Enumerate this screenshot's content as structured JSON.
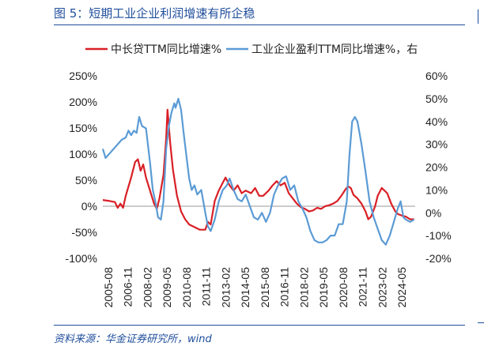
{
  "title": "图 5：短期工业企业利润增速有所企稳",
  "source": "资料来源：华金证券研究所，wind",
  "chart_data": {
    "type": "line",
    "legend": [
      {
        "name": "中长贷TTM同比增速%",
        "color": "#d91f26"
      },
      {
        "name": "工业企业盈利TTM同比增速%，右",
        "color": "#5b9bd5"
      }
    ],
    "x_tick_labels": [
      "2005-08",
      "2006-11",
      "2008-02",
      "2009-05",
      "2010-08",
      "2011-11",
      "2013-02",
      "2014-05",
      "2015-08",
      "2016-11",
      "2018-02",
      "2019-05",
      "2020-08",
      "2021-11",
      "2023-02",
      "2024-05"
    ],
    "y_left": {
      "ticks": [
        "250%",
        "200%",
        "150%",
        "100%",
        "50%",
        "0%",
        "-50%",
        "-100%"
      ],
      "range": [
        -100,
        250
      ]
    },
    "y_right": {
      "ticks": [
        "60%",
        "50%",
        "40%",
        "30%",
        "20%",
        "10%",
        "0%",
        "-10%",
        "-20%"
      ],
      "range": [
        -20,
        60
      ]
    },
    "series": [
      {
        "name": "中长贷TTM同比增速%",
        "axis": "left",
        "color": "#d91f26",
        "points": [
          [
            2005.58,
            12
          ],
          [
            2006.0,
            10
          ],
          [
            2006.33,
            8
          ],
          [
            2006.5,
            -3
          ],
          [
            2006.67,
            5
          ],
          [
            2006.83,
            -3
          ],
          [
            2007.0,
            20
          ],
          [
            2007.33,
            55
          ],
          [
            2007.58,
            85
          ],
          [
            2007.75,
            90
          ],
          [
            2007.92,
            68
          ],
          [
            2008.08,
            80
          ],
          [
            2008.25,
            55
          ],
          [
            2008.5,
            30
          ],
          [
            2008.75,
            5
          ],
          [
            2008.92,
            -5
          ],
          [
            2009.08,
            15
          ],
          [
            2009.33,
            60
          ],
          [
            2009.5,
            130
          ],
          [
            2009.58,
            185
          ],
          [
            2009.75,
            120
          ],
          [
            2009.92,
            70
          ],
          [
            2010.17,
            20
          ],
          [
            2010.42,
            -10
          ],
          [
            2010.67,
            -25
          ],
          [
            2010.92,
            -35
          ],
          [
            2011.25,
            -40
          ],
          [
            2011.58,
            -45
          ],
          [
            2011.92,
            -45
          ],
          [
            2012.08,
            -30
          ],
          [
            2012.25,
            -35
          ],
          [
            2012.5,
            10
          ],
          [
            2012.75,
            30
          ],
          [
            2013.0,
            45
          ],
          [
            2013.17,
            55
          ],
          [
            2013.42,
            40
          ],
          [
            2013.67,
            30
          ],
          [
            2013.92,
            40
          ],
          [
            2014.17,
            25
          ],
          [
            2014.42,
            30
          ],
          [
            2014.75,
            25
          ],
          [
            2015.0,
            35
          ],
          [
            2015.25,
            20
          ],
          [
            2015.5,
            20
          ],
          [
            2015.83,
            30
          ],
          [
            2016.08,
            40
          ],
          [
            2016.33,
            48
          ],
          [
            2016.58,
            40
          ],
          [
            2016.83,
            45
          ],
          [
            2017.08,
            25
          ],
          [
            2017.33,
            15
          ],
          [
            2017.58,
            5
          ],
          [
            2017.83,
            -2
          ],
          [
            2018.08,
            -5
          ],
          [
            2018.33,
            -10
          ],
          [
            2018.58,
            -8
          ],
          [
            2018.83,
            -3
          ],
          [
            2019.08,
            -5
          ],
          [
            2019.33,
            0
          ],
          [
            2019.58,
            2
          ],
          [
            2019.83,
            5
          ],
          [
            2020.08,
            10
          ],
          [
            2020.33,
            20
          ],
          [
            2020.58,
            32
          ],
          [
            2020.75,
            38
          ],
          [
            2020.92,
            35
          ],
          [
            2021.08,
            22
          ],
          [
            2021.33,
            15
          ],
          [
            2021.58,
            5
          ],
          [
            2021.83,
            -10
          ],
          [
            2022.0,
            -25
          ],
          [
            2022.17,
            -20
          ],
          [
            2022.42,
            0
          ],
          [
            2022.58,
            20
          ],
          [
            2022.83,
            35
          ],
          [
            2023.0,
            30
          ],
          [
            2023.17,
            25
          ],
          [
            2023.42,
            5
          ],
          [
            2023.67,
            -10
          ],
          [
            2023.83,
            -15
          ],
          [
            2024.08,
            -18
          ],
          [
            2024.33,
            -20
          ],
          [
            2024.58,
            -25
          ],
          [
            2024.83,
            -25
          ]
        ]
      },
      {
        "name": "工业企业盈利TTM同比增速%，右",
        "axis": "right",
        "color": "#5b9bd5",
        "points": [
          [
            2005.58,
            28
          ],
          [
            2005.75,
            24
          ],
          [
            2006.0,
            26
          ],
          [
            2006.25,
            28
          ],
          [
            2006.5,
            30
          ],
          [
            2006.75,
            32
          ],
          [
            2007.0,
            33
          ],
          [
            2007.17,
            36
          ],
          [
            2007.33,
            34
          ],
          [
            2007.5,
            36
          ],
          [
            2007.67,
            35
          ],
          [
            2007.83,
            42
          ],
          [
            2008.0,
            38
          ],
          [
            2008.25,
            37
          ],
          [
            2008.5,
            22
          ],
          [
            2008.67,
            10
          ],
          [
            2008.83,
            5
          ],
          [
            2009.0,
            -2
          ],
          [
            2009.17,
            -3
          ],
          [
            2009.33,
            5
          ],
          [
            2009.5,
            28
          ],
          [
            2009.67,
            38
          ],
          [
            2009.83,
            44
          ],
          [
            2010.0,
            48
          ],
          [
            2010.08,
            46
          ],
          [
            2010.25,
            50
          ],
          [
            2010.42,
            45
          ],
          [
            2010.58,
            35
          ],
          [
            2010.75,
            25
          ],
          [
            2010.92,
            15
          ],
          [
            2011.08,
            10
          ],
          [
            2011.25,
            12
          ],
          [
            2011.42,
            8
          ],
          [
            2011.67,
            10
          ],
          [
            2011.92,
            0
          ],
          [
            2012.08,
            -6
          ],
          [
            2012.25,
            -8
          ],
          [
            2012.5,
            -3
          ],
          [
            2012.75,
            5
          ],
          [
            2013.0,
            10
          ],
          [
            2013.25,
            12
          ],
          [
            2013.42,
            15
          ],
          [
            2013.67,
            10
          ],
          [
            2013.92,
            6
          ],
          [
            2014.17,
            5
          ],
          [
            2014.42,
            8
          ],
          [
            2014.67,
            3
          ],
          [
            2014.92,
            -2
          ],
          [
            2015.17,
            -3
          ],
          [
            2015.42,
            0
          ],
          [
            2015.67,
            -4
          ],
          [
            2015.92,
            0
          ],
          [
            2016.17,
            8
          ],
          [
            2016.42,
            12
          ],
          [
            2016.67,
            15
          ],
          [
            2016.92,
            16
          ],
          [
            2017.17,
            10
          ],
          [
            2017.42,
            12
          ],
          [
            2017.67,
            5
          ],
          [
            2017.92,
            2
          ],
          [
            2018.17,
            -2
          ],
          [
            2018.42,
            -8
          ],
          [
            2018.67,
            -12
          ],
          [
            2018.92,
            -13
          ],
          [
            2019.17,
            -13
          ],
          [
            2019.42,
            -12
          ],
          [
            2019.67,
            -10
          ],
          [
            2019.92,
            -10
          ],
          [
            2020.17,
            -5
          ],
          [
            2020.42,
            -5
          ],
          [
            2020.67,
            5
          ],
          [
            2020.83,
            25
          ],
          [
            2021.0,
            40
          ],
          [
            2021.17,
            42
          ],
          [
            2021.33,
            40
          ],
          [
            2021.58,
            30
          ],
          [
            2021.83,
            18
          ],
          [
            2022.08,
            5
          ],
          [
            2022.33,
            -2
          ],
          [
            2022.58,
            -7
          ],
          [
            2022.83,
            -12
          ],
          [
            2023.08,
            -14
          ],
          [
            2023.33,
            -10
          ],
          [
            2023.58,
            -4
          ],
          [
            2023.83,
            2
          ],
          [
            2024.0,
            5
          ],
          [
            2024.17,
            -2
          ],
          [
            2024.33,
            -3
          ],
          [
            2024.58,
            -4
          ],
          [
            2024.83,
            -3
          ]
        ]
      }
    ]
  }
}
